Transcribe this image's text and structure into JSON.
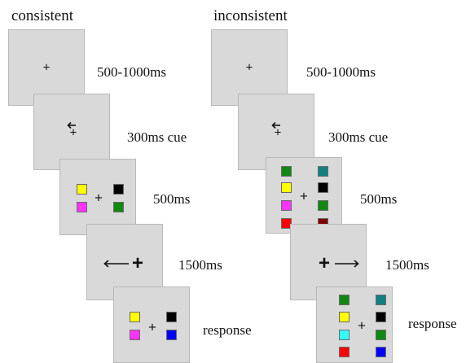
{
  "conditions": {
    "consistent": {
      "title": "consistent",
      "steps": [
        {
          "label": "500-1000ms"
        },
        {
          "label": "300ms cue"
        },
        {
          "label": "500ms"
        },
        {
          "label": "1500ms"
        },
        {
          "label": "response"
        }
      ]
    },
    "inconsistent": {
      "title": "inconsistent",
      "steps": [
        {
          "label": "500-1000ms"
        },
        {
          "label": "300ms cue"
        },
        {
          "label": "500ms"
        },
        {
          "label": "1500ms"
        },
        {
          "label": "response"
        }
      ]
    }
  },
  "fixation_symbol": "+",
  "colors": {
    "panel": "#d9d9d9",
    "yellow": "#ffff00",
    "magenta": "#ff33ff",
    "black": "#000000",
    "green": "#118811",
    "blue": "#0000ff",
    "teal": "#138080",
    "red": "#ff0000",
    "maroon": "#800000",
    "cyan": "#33ffff"
  }
}
